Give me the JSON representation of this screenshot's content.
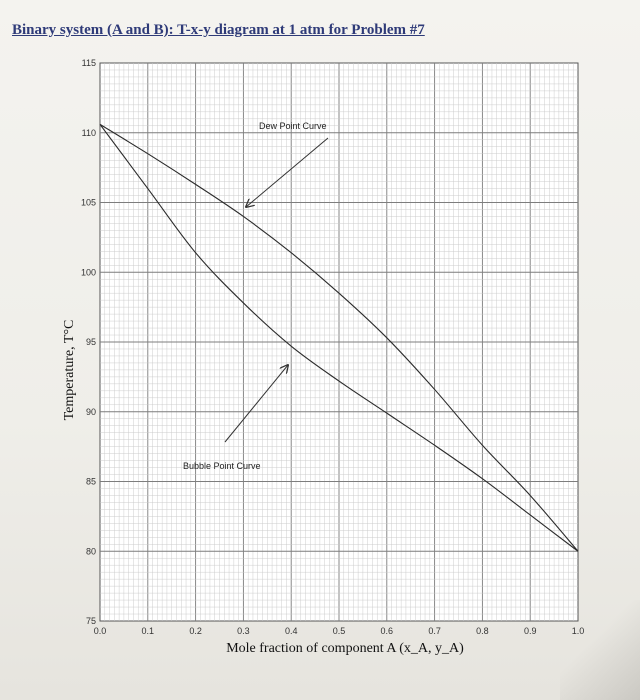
{
  "title": "Binary system (A and B): T-x-y diagram at 1 atm for Problem #7",
  "chart_data": {
    "type": "line",
    "title": "Binary system (A and B): T-x-y diagram at 1 atm for Problem #7",
    "xlabel": "Mole fraction of component A (x_A, y_A)",
    "ylabel": "Temperature, T°C",
    "xlim": [
      0.0,
      1.0
    ],
    "ylim": [
      75,
      115
    ],
    "x_ticks": [
      "0.0",
      "0.1",
      "0.2",
      "0.3",
      "0.4",
      "0.5",
      "0.6",
      "0.7",
      "0.8",
      "0.9",
      "1.0"
    ],
    "y_ticks": [
      "75",
      "80",
      "85",
      "90",
      "95",
      "100",
      "105",
      "110",
      "115"
    ],
    "grid": true,
    "series": [
      {
        "name": "Dew Point Curve",
        "x": [
          0.0,
          0.1,
          0.2,
          0.3,
          0.4,
          0.5,
          0.6,
          0.7,
          0.8,
          0.9,
          1.0
        ],
        "y": [
          110.6,
          108.5,
          106.3,
          104.0,
          101.4,
          98.5,
          95.3,
          91.6,
          87.6,
          84.0,
          80.0
        ]
      },
      {
        "name": "Bubble Point Curve",
        "x": [
          0.0,
          0.1,
          0.2,
          0.3,
          0.4,
          0.5,
          0.6,
          0.7,
          0.8,
          0.9,
          1.0
        ],
        "y": [
          110.6,
          106.0,
          101.4,
          97.8,
          94.7,
          92.2,
          89.9,
          87.6,
          85.2,
          82.6,
          80.0
        ]
      }
    ],
    "annotations": [
      {
        "text": "Dew Point Curve",
        "series": "Dew Point Curve"
      },
      {
        "text": "Bubble Point Curve",
        "series": "Bubble Point Curve"
      }
    ]
  }
}
